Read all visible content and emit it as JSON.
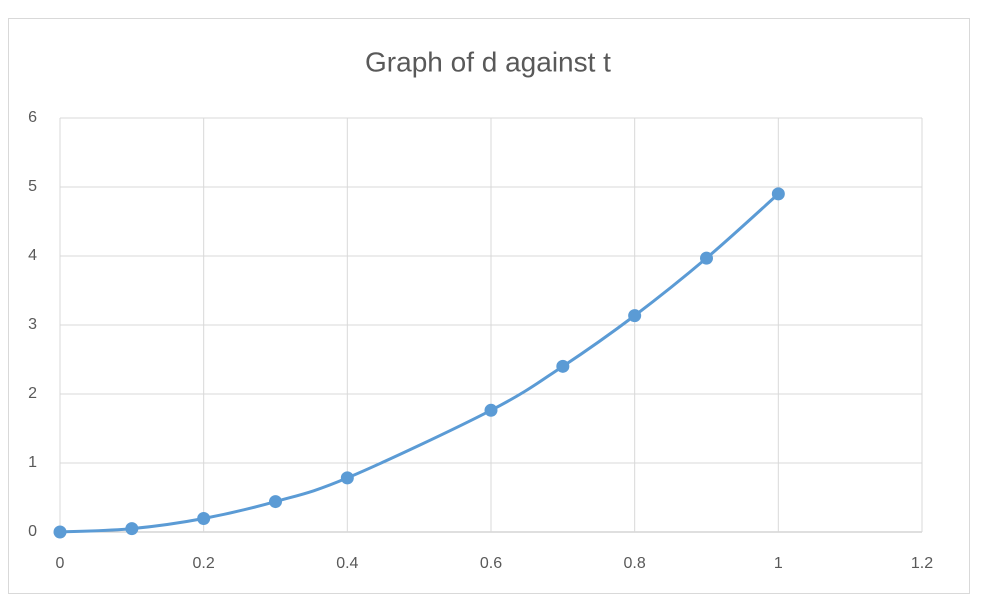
{
  "chart_data": {
    "type": "scatter",
    "title": "Graph of d against t",
    "x": [
      0,
      0.1,
      0.2,
      0.3,
      0.4,
      0.6,
      0.7,
      0.8,
      0.9,
      1
    ],
    "series": [
      {
        "color": "#5b9bd5",
        "values": [
          0,
          0.049,
          0.196,
          0.441,
          0.784,
          1.764,
          2.401,
          3.136,
          3.969,
          4.9
        ]
      }
    ],
    "xlim": [
      0,
      1.2
    ],
    "xticks": [
      0,
      0.2,
      0.4,
      0.6,
      0.8,
      1,
      1.2
    ],
    "ylim": [
      0,
      6
    ],
    "yticks": [
      0,
      1,
      2,
      3,
      4,
      5,
      6
    ],
    "grid": true,
    "smooth": true
  }
}
